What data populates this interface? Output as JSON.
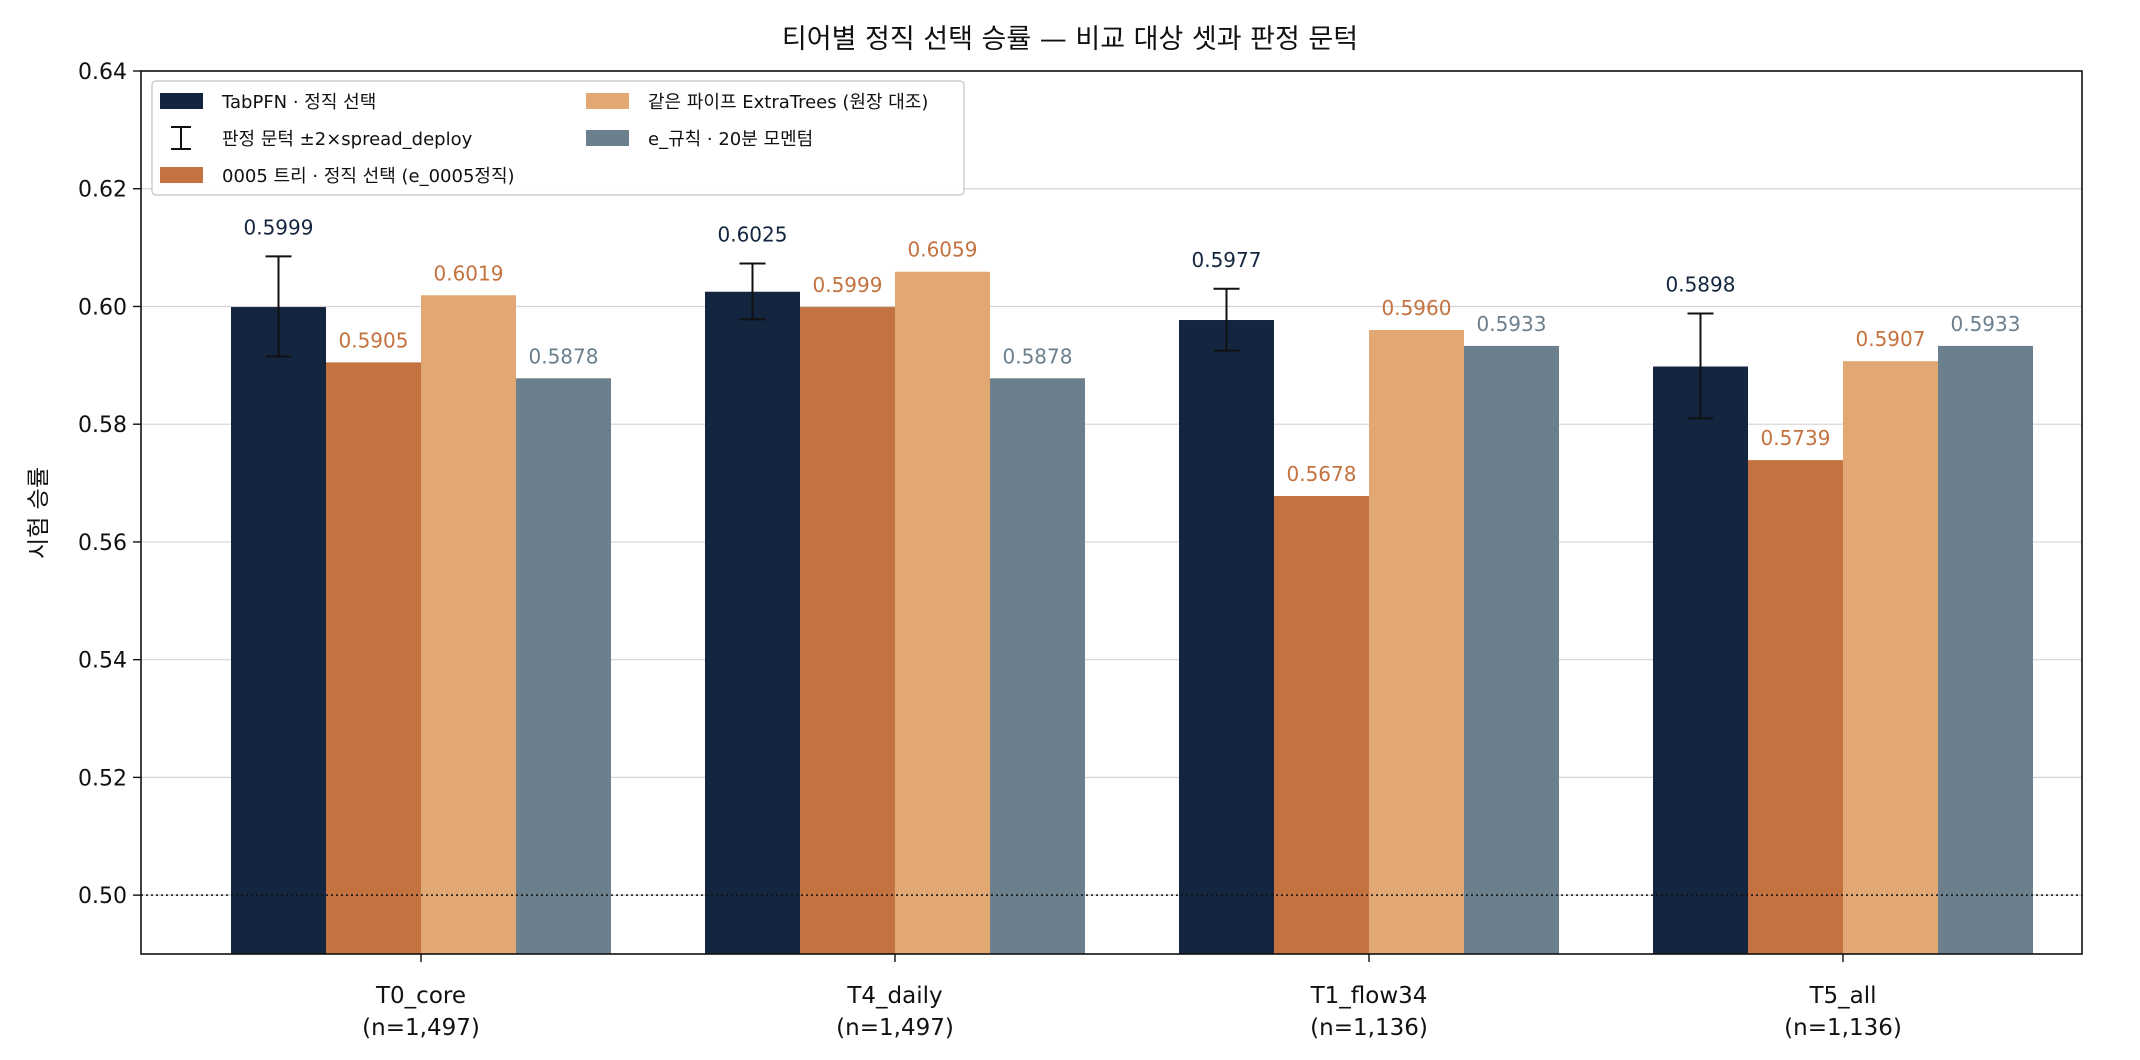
{
  "chart_data": {
    "type": "bar",
    "title": "티어별 정직 선택 승률 — 비교 대상 셋과 판정 문턱",
    "xlabel": "",
    "ylabel": "시험 승률",
    "ylim": [
      0.49,
      0.64
    ],
    "yticks": [
      "0.50",
      "0.52",
      "0.54",
      "0.56",
      "0.58",
      "0.60",
      "0.62",
      "0.64"
    ],
    "categories": [
      "T0_core",
      "T4_daily",
      "T1_flow34",
      "T5_all"
    ],
    "category_notes": [
      "(n=1,497)",
      "(n=1,497)",
      "(n=1,136)",
      "(n=1,136)"
    ],
    "series": [
      {
        "name": "TabPFN · 정직 선택",
        "color": "#14263f",
        "label_color": "#14263f",
        "values": [
          0.5999,
          0.6025,
          0.5977,
          0.5898
        ],
        "value_labels": [
          "0.5999",
          "0.6025",
          "0.5977",
          "0.5898"
        ]
      },
      {
        "name": "0005 트리 · 정직 선택 (e_0005정직)",
        "color": "#c4723f",
        "label_color": "#c4723f",
        "values": [
          0.5905,
          0.5999,
          0.5678,
          0.5739
        ],
        "value_labels": [
          "0.5905",
          "0.5999",
          "0.5678",
          "0.5739"
        ]
      },
      {
        "name": "같은 파이프 ExtraTrees (원장 대조)",
        "color": "#e2a874",
        "label_color": "#c4723f",
        "values": [
          0.6019,
          0.6059,
          0.596,
          0.5907
        ],
        "value_labels": [
          "0.6019",
          "0.6059",
          "0.5960",
          "0.5907"
        ]
      },
      {
        "name": "e_규칙 · 20분 모멘텀",
        "color": "#6b7f8d",
        "label_color": "#6b7f8d",
        "values": [
          0.5878,
          0.5878,
          0.5933,
          0.5933
        ],
        "value_labels": [
          "0.5878",
          "0.5878",
          "0.5933",
          "0.5933"
        ]
      }
    ],
    "error_bars": {
      "name": "판정 문턱 ±2×spread_deploy",
      "series_index": 0,
      "lower": [
        0.5915,
        0.5978,
        0.5925,
        0.581
      ],
      "upper": [
        0.6085,
        0.6073,
        0.603,
        0.5988
      ]
    },
    "reference_line": {
      "y": 0.5,
      "style": "dotted"
    },
    "legend_position": "top-left",
    "legend_columns": 2,
    "grid": "horizontal"
  }
}
